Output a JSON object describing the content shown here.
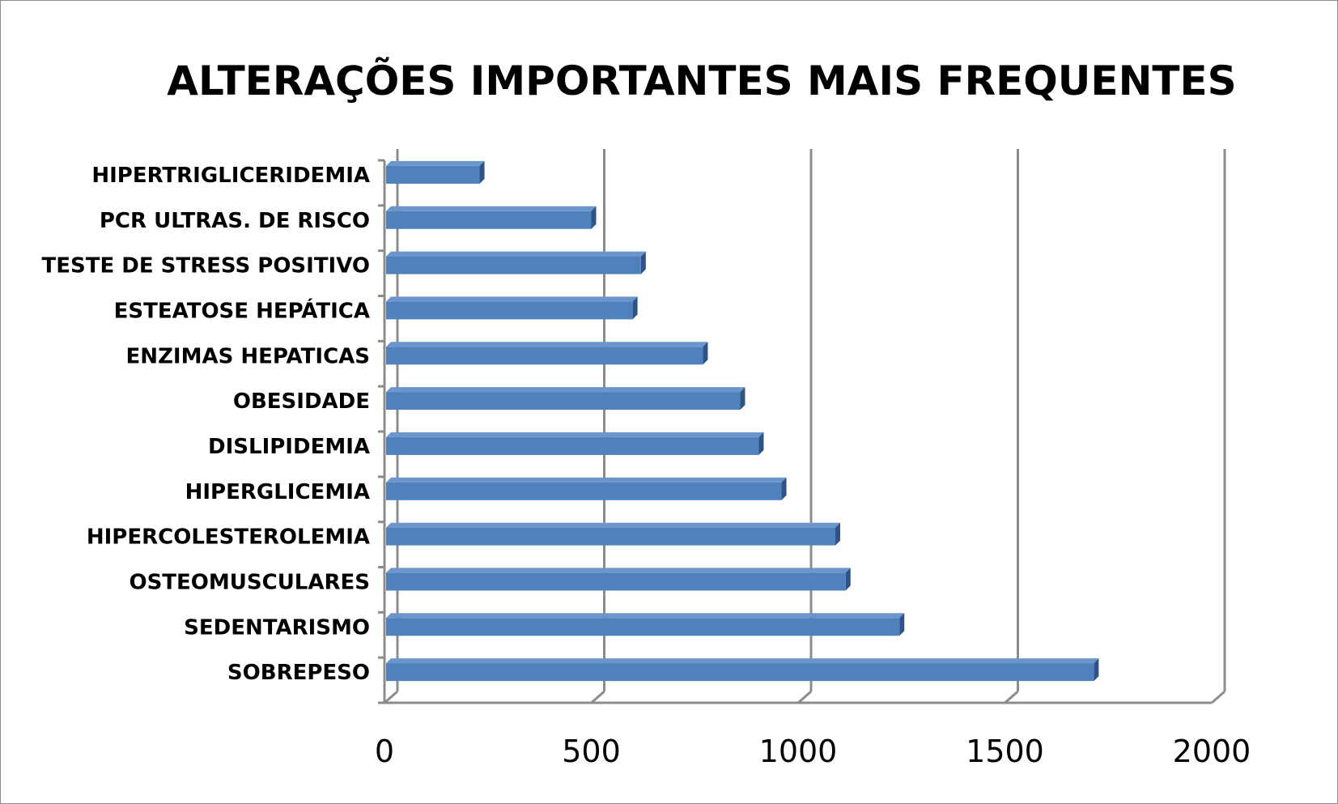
{
  "chart_data": {
    "type": "bar",
    "orientation": "horizontal",
    "style": "3d",
    "title": "ALTERAÇÕES IMPORTANTES MAIS FREQUENTES",
    "xlabel": "",
    "ylabel": "",
    "categories": [
      "HIPERTRIGLICERIDEMIA",
      "PCR ULTRAS. DE RISCO",
      "TESTE DE STRESS POSITIVO",
      "ESTEATOSE HEPÁTICA",
      "ENZIMAS HEPATICAS",
      "OBESIDADE",
      "DISLIPIDEMIA",
      "HIPERGLICEMIA",
      "HIPERCOLESTEROLEMIA",
      "OSTEOMUSCULARES",
      "SEDENTARISMO",
      "SOBREPESO"
    ],
    "values": [
      230,
      500,
      620,
      600,
      770,
      860,
      905,
      960,
      1090,
      1115,
      1245,
      1715
    ],
    "xlim": [
      0,
      2000
    ],
    "xticks": [
      "0",
      "500",
      "1000",
      "1500",
      "2000"
    ],
    "grid": "vertical",
    "legend": "none",
    "colors": {
      "bar_front": "#4f81bd",
      "bar_top": "#6b96cc",
      "bar_side": "#2e5384",
      "grid": "#8c8c8c",
      "border": "#8c8c8c"
    }
  }
}
